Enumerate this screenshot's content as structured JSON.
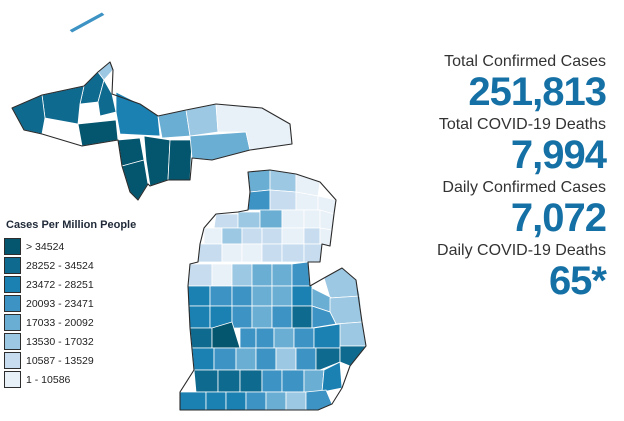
{
  "map": {
    "region": "Michigan",
    "colors": {
      "bin0": "#04556e",
      "bin1": "#0f6a8f",
      "bin2": "#1b80b2",
      "bin3": "#3c93c4",
      "bin4": "#6aaed3",
      "bin5": "#9cc8e3",
      "bin6": "#c7ddef",
      "bin7": "#e8f0f8"
    }
  },
  "legend": {
    "title": "Cases Per Million People",
    "items": [
      {
        "label": "> 34524",
        "color": "#04556e"
      },
      {
        "label": "28252 - 34524",
        "color": "#0f6a8f"
      },
      {
        "label": "23472 - 28251",
        "color": "#1b80b2"
      },
      {
        "label": "20093 - 23471",
        "color": "#3c93c4"
      },
      {
        "label": "17033 - 20092",
        "color": "#6aaed3"
      },
      {
        "label": "13530 - 17032",
        "color": "#9cc8e3"
      },
      {
        "label": "10587 - 13529",
        "color": "#c7ddef"
      },
      {
        "label": "1 - 10586",
        "color": "#e8f0f8"
      }
    ]
  },
  "stats": [
    {
      "label": "Total Confirmed Cases",
      "value": "251,813"
    },
    {
      "label": "Total COVID-19 Deaths",
      "value": "7,994"
    },
    {
      "label": "Daily Confirmed Cases",
      "value": "7,072"
    },
    {
      "label": "Daily COVID-19 Deaths",
      "value": "65*"
    }
  ]
}
